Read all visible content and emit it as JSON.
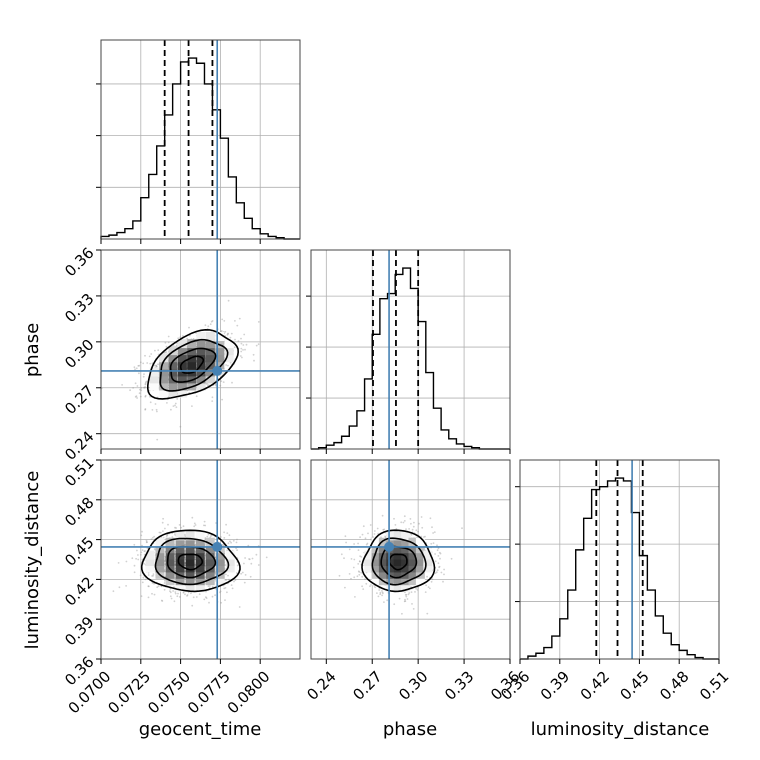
{
  "figure": {
    "type": "corner-plot",
    "parameters": [
      "geocent_time",
      "phase",
      "luminosity_distance"
    ],
    "colors": {
      "truth": "#4682b4",
      "lines": "#000000",
      "grid": "#b0b0b0",
      "scatter": "#9a9a9a"
    }
  },
  "chart_data": {
    "type": "corner",
    "parameters": [
      {
        "name": "geocent_time",
        "label": "geocent_time",
        "range": [
          0.07,
          0.0825
        ],
        "ticks": [
          "0.0700",
          "0.0725",
          "0.0750",
          "0.0775",
          "0.0800"
        ],
        "tick_values": [
          0.07,
          0.0725,
          0.075,
          0.0775,
          0.08
        ],
        "truth": 0.0773,
        "quantiles": [
          0.074,
          0.0755,
          0.077
        ],
        "histogram": {
          "bin_edges": [
            0.07,
            0.0705,
            0.071,
            0.0715,
            0.072,
            0.0725,
            0.073,
            0.0735,
            0.074,
            0.0745,
            0.075,
            0.0755,
            0.076,
            0.0765,
            0.077,
            0.0775,
            0.078,
            0.0785,
            0.079,
            0.0795,
            0.08,
            0.0805,
            0.081,
            0.0815,
            0.082,
            0.0825
          ],
          "counts": [
            2,
            3,
            5,
            8,
            14,
            32,
            50,
            72,
            96,
            120,
            137,
            140,
            136,
            120,
            100,
            78,
            48,
            28,
            16,
            8,
            4,
            2,
            1,
            0,
            0
          ]
        }
      },
      {
        "name": "phase",
        "label": "phase",
        "range": [
          0.23,
          0.36
        ],
        "ticks": [
          "0.24",
          "0.27",
          "0.30",
          "0.33",
          "0.36"
        ],
        "tick_values": [
          0.24,
          0.27,
          0.3,
          0.33,
          0.36
        ],
        "truth": 0.281,
        "quantiles": [
          0.2705,
          0.2855,
          0.3
        ],
        "histogram": {
          "bin_edges": [
            0.23,
            0.235,
            0.24,
            0.245,
            0.25,
            0.255,
            0.26,
            0.265,
            0.27,
            0.275,
            0.28,
            0.285,
            0.29,
            0.295,
            0.3,
            0.305,
            0.31,
            0.315,
            0.32,
            0.325,
            0.33,
            0.335,
            0.34,
            0.345,
            0.35,
            0.355,
            0.36
          ],
          "counts": [
            0,
            1,
            3,
            5,
            10,
            18,
            30,
            55,
            90,
            118,
            122,
            137,
            142,
            126,
            100,
            60,
            32,
            15,
            8,
            4,
            2,
            1,
            0,
            0,
            0,
            0
          ]
        }
      },
      {
        "name": "luminosity_distance",
        "label": "luminosity_distance",
        "range": [
          0.36,
          0.51
        ],
        "ticks": [
          "0.36",
          "0.39",
          "0.42",
          "0.45",
          "0.48",
          "0.51"
        ],
        "tick_values": [
          0.36,
          0.39,
          0.42,
          0.45,
          0.48,
          0.51
        ],
        "truth": 0.4445,
        "quantiles": [
          0.4175,
          0.4335,
          0.4525
        ],
        "histogram": {
          "bin_edges": [
            0.36,
            0.366,
            0.372,
            0.378,
            0.384,
            0.39,
            0.396,
            0.402,
            0.408,
            0.414,
            0.42,
            0.426,
            0.432,
            0.438,
            0.444,
            0.45,
            0.456,
            0.462,
            0.468,
            0.474,
            0.48,
            0.486,
            0.492,
            0.498,
            0.504,
            0.51
          ],
          "counts": [
            0,
            2,
            4,
            8,
            16,
            28,
            48,
            76,
            98,
            118,
            120,
            124,
            126,
            124,
            102,
            72,
            48,
            30,
            18,
            10,
            6,
            3,
            1,
            0,
            0
          ]
        }
      }
    ],
    "pairs": [
      {
        "x": "geocent_time",
        "y": "phase",
        "truth": [
          0.0773,
          0.281
        ],
        "mean": [
          0.0757,
          0.285
        ],
        "sd": [
          0.0014,
          0.011
        ],
        "corr": 0.45
      },
      {
        "x": "geocent_time",
        "y": "luminosity_distance",
        "truth": [
          0.0773,
          0.4445
        ],
        "mean": [
          0.0756,
          0.4335
        ],
        "sd": [
          0.0015,
          0.0115
        ],
        "corr": -0.05
      },
      {
        "x": "phase",
        "y": "luminosity_distance",
        "truth": [
          0.281,
          0.4445
        ],
        "mean": [
          0.287,
          0.4335
        ],
        "sd": [
          0.0115,
          0.0115
        ],
        "corr": 0.0
      }
    ],
    "grid": true,
    "contour_levels": [
      0.5,
      1.0,
      1.5,
      2.0
    ]
  }
}
